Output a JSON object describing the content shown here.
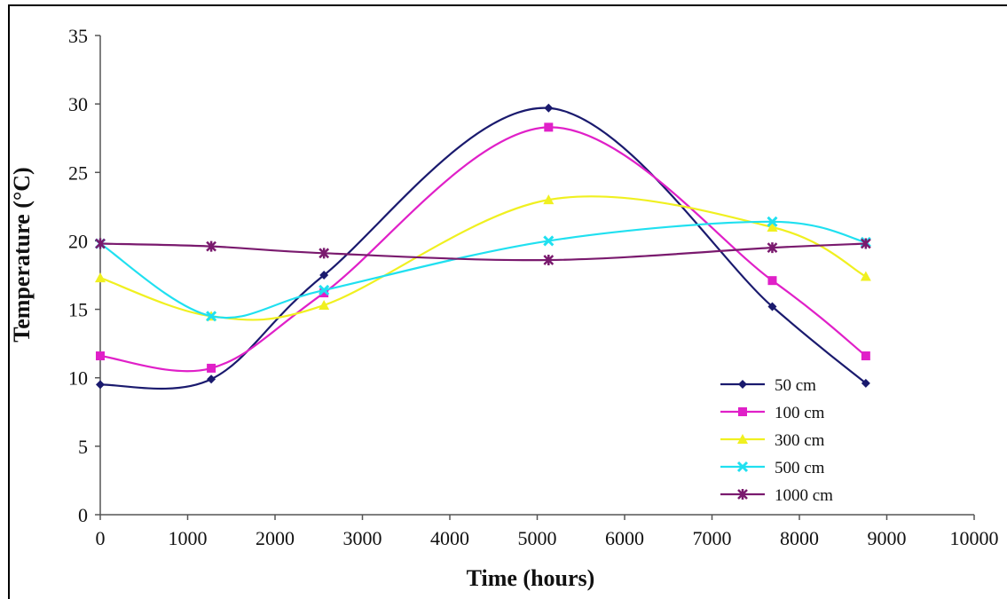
{
  "chart_data": {
    "type": "line",
    "title": "",
    "xlabel": "Time (hours)",
    "ylabel": "Temperature (°C)",
    "xlim": [
      0,
      10000
    ],
    "ylim": [
      0,
      35
    ],
    "xticks": [
      "0",
      "1000",
      "2000",
      "3000",
      "4000",
      "5000",
      "6000",
      "7000",
      "8000",
      "9000",
      "10000"
    ],
    "yticks": [
      "0",
      "5",
      "10",
      "15",
      "20",
      "25",
      "30",
      "35"
    ],
    "grid": false,
    "legend_position": "bottom-right",
    "series": [
      {
        "name": "50 cm",
        "color": "#1a1a6e",
        "marker": "diamond",
        "x": [
          0,
          1270,
          2560,
          5130,
          7690,
          8760
        ],
        "y": [
          9.5,
          9.9,
          17.5,
          29.7,
          15.2,
          9.6
        ]
      },
      {
        "name": "100 cm",
        "color": "#e020c8",
        "marker": "square",
        "x": [
          0,
          1270,
          2560,
          5130,
          7690,
          8760
        ],
        "y": [
          11.6,
          10.7,
          16.2,
          28.3,
          17.1,
          11.6
        ]
      },
      {
        "name": "300 cm",
        "color": "#f0f020",
        "marker": "triangle",
        "x": [
          0,
          1270,
          2560,
          5130,
          7690,
          8760
        ],
        "y": [
          17.3,
          14.5,
          15.3,
          23.0,
          21.0,
          17.4
        ]
      },
      {
        "name": "500 cm",
        "color": "#20e0f0",
        "marker": "x",
        "x": [
          0,
          1270,
          2560,
          5130,
          7690,
          8760
        ],
        "y": [
          19.8,
          14.5,
          16.4,
          20.0,
          21.4,
          19.9
        ]
      },
      {
        "name": "1000 cm",
        "color": "#7a1a6e",
        "marker": "star",
        "x": [
          0,
          1270,
          2560,
          5130,
          7690,
          8760
        ],
        "y": [
          19.8,
          19.6,
          19.1,
          18.6,
          19.5,
          19.8
        ]
      }
    ]
  }
}
